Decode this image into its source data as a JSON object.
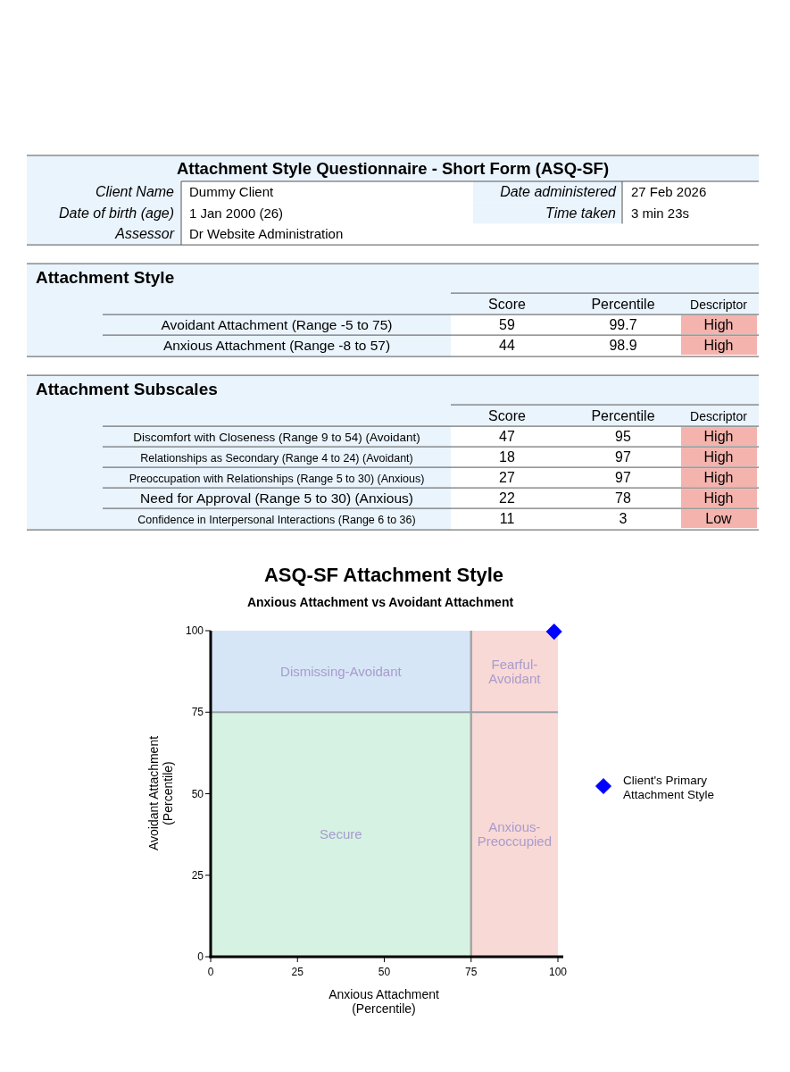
{
  "chart_data": [
    {
      "type": "other",
      "title": "Attachment Style Questionnaire - Short Form (ASQ-SF)",
      "cell_labels": [
        [
          "Client Name",
          "Dummy Client",
          "Date administered",
          "27 Feb 2026"
        ],
        [
          "Date of birth (age)",
          "1 Jan 2000 (26)",
          "Time taken",
          "3 min 23s"
        ],
        [
          "Assessor",
          "Dr Website Administration",
          null,
          null
        ]
      ]
    },
    {
      "type": "other",
      "title": "Attachment Style",
      "categories": [
        "Score",
        "Percentile",
        "Descriptor"
      ],
      "y_categories": [
        "Avoidant Attachment (Range -5 to 75)",
        "Anxious Attachment (Range -8 to 57)"
      ],
      "cell_labels": [
        [
          "59",
          "99.7",
          "High"
        ],
        [
          "44",
          "98.9",
          "High"
        ]
      ]
    },
    {
      "type": "other",
      "title": "Attachment Subscales",
      "categories": [
        "Score",
        "Percentile",
        "Descriptor"
      ],
      "y_categories": [
        "Discomfort with Closeness (Range 9 to 54) (Avoidant)",
        "Relationships as Secondary (Range 4 to 24) (Avoidant)",
        "Preoccupation with Relationships (Range 5 to 30) (Anxious)",
        "Need for Approval (Range 5 to 30) (Anxious)",
        "Confidence in Interpersonal Interactions (Range 6 to 36)"
      ],
      "cell_labels": [
        [
          "47",
          "95",
          "High"
        ],
        [
          "18",
          "97",
          "High"
        ],
        [
          "27",
          "97",
          "High"
        ],
        [
          "22",
          "78",
          "High"
        ],
        [
          "11",
          "3",
          "Low"
        ]
      ]
    },
    {
      "type": "scatter",
      "title": "ASQ-SF Attachment Style",
      "subtitle": "Anxious Attachment vs Avoidant Attachment",
      "xlabel": "Anxious Attachment (Percentile)",
      "ylabel": "Avoidant Attachment (Percentile)",
      "xlim": [
        0,
        100
      ],
      "ylim": [
        0,
        100
      ],
      "xticks": [
        0,
        25,
        50,
        75,
        100
      ],
      "yticks": [
        0,
        25,
        50,
        75,
        100
      ],
      "grid": false,
      "legend": "right",
      "marker": "diamond",
      "series": [
        {
          "name": "Client's Primary Attachment Style",
          "color": "#0000ff",
          "x": [
            98.9
          ],
          "values": [
            99.7
          ]
        }
      ],
      "bands": [
        {
          "axis": "y",
          "from": 0,
          "to": 75,
          "color": "#d5f2e2",
          "label": "Secure"
        },
        {
          "axis": "y",
          "from": 75,
          "to": 100,
          "color": "#d6e6f6",
          "label": "Dismissing-Avoidant"
        },
        {
          "axis": "x",
          "from": 75,
          "to": 100,
          "color": "#f9d9d6",
          "label": "Anxious-Preoccupied"
        }
      ],
      "ref_lines": [
        {
          "axis": "x",
          "value": 75,
          "color": "#999999"
        },
        {
          "axis": "y",
          "value": 75,
          "color": "#9aa2a8"
        }
      ],
      "annotations": [
        "Fearful-Avoidant"
      ]
    }
  ]
}
